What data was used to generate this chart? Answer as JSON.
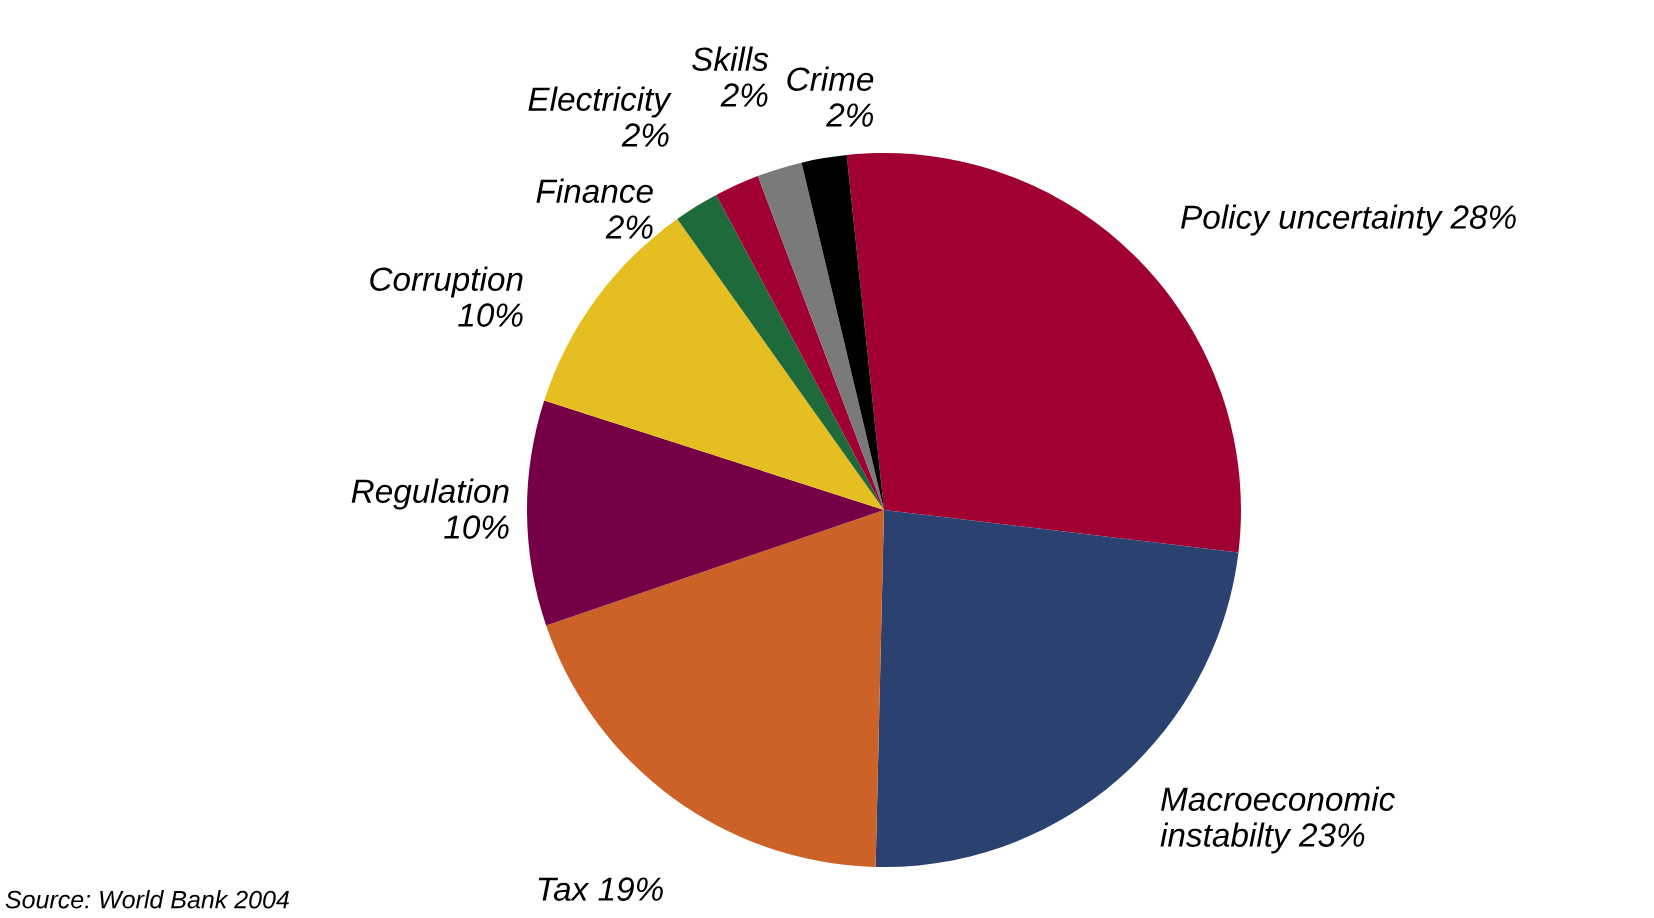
{
  "chart_data": {
    "type": "pie",
    "categories": [
      "Policy uncertainty",
      "Macroeconomic instabilty",
      "Tax",
      "Regulation",
      "Corruption",
      "Finance",
      "Electricity",
      "Skills",
      "Crime"
    ],
    "values": [
      28,
      23,
      19,
      10,
      10,
      2,
      2,
      2,
      2
    ],
    "value_labels": [
      "28%",
      "23%",
      "19%",
      "10%",
      "10%",
      "2%",
      "2%",
      "2%",
      "2%"
    ],
    "colors": [
      "#a00032",
      "#2b4170",
      "#cc6228",
      "#760046",
      "#e5bf22",
      "#1e6a3a",
      "#a00032",
      "#7a7a7a",
      "#000000"
    ],
    "annotations": [
      "Source: World Bank 2004"
    ]
  }
}
